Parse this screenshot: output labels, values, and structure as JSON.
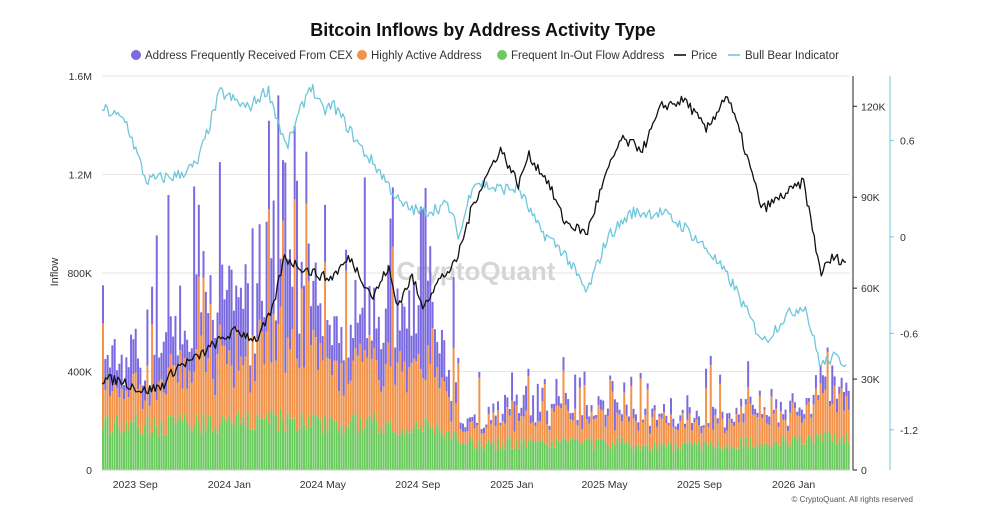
{
  "chart_data": {
    "type": "bar",
    "title": "Bitcoin Inflows by Address Activity Type",
    "ylabel": "Inflow",
    "watermark": "CryptoQuant",
    "credit": "© CryptoQuant. All rights reserved",
    "ylim": [
      0,
      1600000
    ],
    "y_ticks": [
      "0",
      "400K",
      "800K",
      "1.2M",
      "1.6M"
    ],
    "y_tick_values": [
      0,
      400000,
      800000,
      1200000,
      1600000
    ],
    "price_ylim": [
      0,
      130000
    ],
    "price_ticks": [
      "0",
      "30K",
      "60K",
      "90K",
      "120K"
    ],
    "price_tick_values": [
      0,
      30000,
      60000,
      90000,
      120000
    ],
    "bbi_ylim": [
      -1.45,
      1.0
    ],
    "bbi_ticks": [
      "-1.2",
      "-0.6",
      "0",
      "0.6"
    ],
    "bbi_tick_values": [
      -1.2,
      -0.6,
      0,
      0.6
    ],
    "x_range": [
      "2023-07-20",
      "2026-03-15"
    ],
    "x_ticks": [
      "2023 Sep",
      "2024 Jan",
      "2024 May",
      "2024 Sep",
      "2025 Jan",
      "2025 May",
      "2025 Sep",
      "2026 Jan"
    ],
    "x_tick_dates": [
      "2023-09-01",
      "2024-01-01",
      "2024-05-01",
      "2024-09-01",
      "2025-01-01",
      "2025-05-01",
      "2025-09-01",
      "2026-01-01"
    ],
    "legend_position": "top",
    "grid": "horizontal",
    "series": [
      {
        "name": "Address Frequently Received From CEX",
        "kind": "bar",
        "color": "#7b6ae0",
        "x": [
          "2023-08-01",
          "2023-10-01",
          "2023-12-01",
          "2024-02-01",
          "2024-03-15",
          "2024-05-01",
          "2024-06-15",
          "2024-08-01",
          "2024-09-15",
          "2024-11-01",
          "2025-01-01",
          "2025-03-01",
          "2025-05-01",
          "2025-07-01",
          "2025-09-01",
          "2025-11-01",
          "2026-01-01",
          "2026-02-15"
        ],
        "values": [
          150000,
          200000,
          250000,
          350000,
          400000,
          200000,
          220000,
          250000,
          230000,
          20000,
          40000,
          50000,
          40000,
          30000,
          30000,
          30000,
          40000,
          60000
        ]
      },
      {
        "name": "Highly Active Address",
        "kind": "bar",
        "color": "#f2934c",
        "x": [
          "2023-08-01",
          "2023-10-01",
          "2023-12-01",
          "2024-02-01",
          "2024-03-15",
          "2024-05-01",
          "2024-06-15",
          "2024-08-01",
          "2024-09-15",
          "2024-11-01",
          "2025-01-01",
          "2025-03-01",
          "2025-05-01",
          "2025-07-01",
          "2025-09-01",
          "2025-11-01",
          "2026-01-01",
          "2026-02-15"
        ],
        "values": [
          130000,
          160000,
          200000,
          280000,
          320000,
          230000,
          220000,
          240000,
          230000,
          80000,
          100000,
          110000,
          100000,
          90000,
          90000,
          100000,
          110000,
          150000
        ]
      },
      {
        "name": "Frequent In-Out Flow Address",
        "kind": "bar",
        "color": "#6ccb5f",
        "x": [
          "2023-08-01",
          "2023-10-01",
          "2023-12-01",
          "2024-02-01",
          "2024-03-15",
          "2024-05-01",
          "2024-06-15",
          "2024-08-01",
          "2024-09-15",
          "2024-11-01",
          "2025-01-01",
          "2025-03-01",
          "2025-05-01",
          "2025-07-01",
          "2025-09-01",
          "2025-11-01",
          "2026-01-01",
          "2026-02-15"
        ],
        "values": [
          190000,
          180000,
          190000,
          200000,
          200000,
          190000,
          190000,
          190000,
          180000,
          110000,
          110000,
          110000,
          110000,
          100000,
          100000,
          110000,
          120000,
          130000
        ]
      },
      {
        "name": "Price",
        "kind": "line",
        "color": "#111111",
        "x": [
          "2023-07-20",
          "2023-08-15",
          "2023-09-10",
          "2023-10-05",
          "2023-10-25",
          "2023-11-20",
          "2023-12-15",
          "2024-01-10",
          "2024-02-05",
          "2024-02-25",
          "2024-03-12",
          "2024-04-10",
          "2024-05-10",
          "2024-06-05",
          "2024-07-05",
          "2024-07-25",
          "2024-08-05",
          "2024-08-25",
          "2024-09-06",
          "2024-09-30",
          "2024-10-20",
          "2024-11-12",
          "2024-12-05",
          "2024-12-17",
          "2025-01-10",
          "2025-01-22",
          "2025-02-15",
          "2025-03-10",
          "2025-04-08",
          "2025-05-01",
          "2025-05-22",
          "2025-06-20",
          "2025-07-14",
          "2025-08-14",
          "2025-09-10",
          "2025-10-06",
          "2025-10-25",
          "2025-11-21",
          "2025-12-15",
          "2026-01-14",
          "2026-02-05",
          "2026-02-20",
          "2026-03-10"
        ],
        "values": [
          30000,
          29500,
          26000,
          27500,
          34000,
          37000,
          42000,
          46000,
          43000,
          52000,
          70000,
          66000,
          63000,
          70000,
          57000,
          67000,
          54000,
          64000,
          54000,
          63000,
          68000,
          88000,
          100000,
          106000,
          94000,
          104000,
          96000,
          82000,
          78000,
          96000,
          109000,
          106000,
          120000,
          122000,
          112000,
          124000,
          110000,
          86000,
          90000,
          95000,
          65000,
          70000,
          69000
        ]
      },
      {
        "name": "Bull Bear Indicator",
        "kind": "line",
        "color": "#6fc7dc",
        "x": [
          "2023-07-20",
          "2023-08-20",
          "2023-09-15",
          "2023-10-25",
          "2023-11-20",
          "2023-12-20",
          "2024-01-25",
          "2024-02-20",
          "2024-03-15",
          "2024-04-15",
          "2024-05-01",
          "2024-05-15",
          "2024-06-20",
          "2024-07-15",
          "2024-08-10",
          "2024-09-06",
          "2024-10-10",
          "2024-10-25",
          "2024-11-12",
          "2024-12-10",
          "2025-01-10",
          "2025-02-05",
          "2025-03-10",
          "2025-04-08",
          "2025-05-05",
          "2025-06-05",
          "2025-07-15",
          "2025-08-15",
          "2025-09-15",
          "2025-10-15",
          "2025-11-10",
          "2025-11-25",
          "2025-12-20",
          "2026-01-15",
          "2026-02-05",
          "2026-02-20",
          "2026-03-10"
        ],
        "values": [
          0.8,
          0.72,
          0.35,
          0.38,
          0.45,
          0.9,
          0.8,
          0.92,
          0.55,
          0.95,
          0.78,
          0.82,
          0.55,
          0.4,
          0.2,
          0.15,
          0.2,
          0.0,
          0.35,
          0.3,
          0.3,
          0.05,
          -0.1,
          -0.35,
          0.0,
          0.15,
          0.15,
          0.05,
          -0.1,
          -0.3,
          -0.55,
          -0.65,
          -0.5,
          -0.42,
          -0.8,
          -0.75,
          -0.78
        ]
      }
    ]
  }
}
